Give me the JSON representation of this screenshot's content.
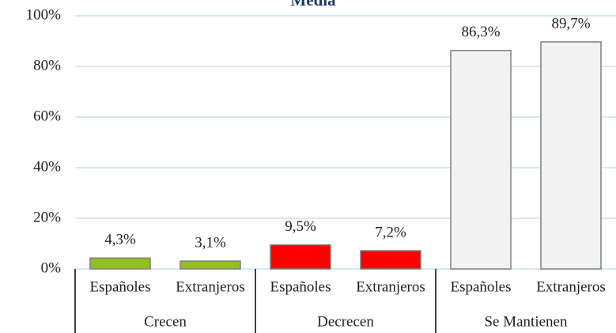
{
  "chart_data": {
    "type": "bar",
    "title": "Media",
    "categories": [
      "Españoles",
      "Extranjeros",
      "Españoles",
      "Extranjeros",
      "Españoles",
      "Extranjeros"
    ],
    "groups": [
      "Crecen",
      "Decrecen",
      "Se Mantienen"
    ],
    "values": [
      4.3,
      3.1,
      9.5,
      7.2,
      86.3,
      89.7
    ],
    "value_labels": [
      "4,3%",
      "3,1%",
      "9,5%",
      "7,2%",
      "86,3%",
      "89,7%"
    ],
    "colors": [
      "#92c01f",
      "#92c01f",
      "#ff0000",
      "#ff0000",
      "#f2f2f2",
      "#f2f2f2"
    ],
    "ylim": [
      0,
      100
    ],
    "yticks": [
      {
        "value": 0,
        "label": "0%"
      },
      {
        "value": 20,
        "label": "20%"
      },
      {
        "value": 40,
        "label": "40%"
      },
      {
        "value": 60,
        "label": "60%"
      },
      {
        "value": 80,
        "label": "80%"
      },
      {
        "value": 100,
        "label": "100%"
      }
    ],
    "grid": true
  }
}
